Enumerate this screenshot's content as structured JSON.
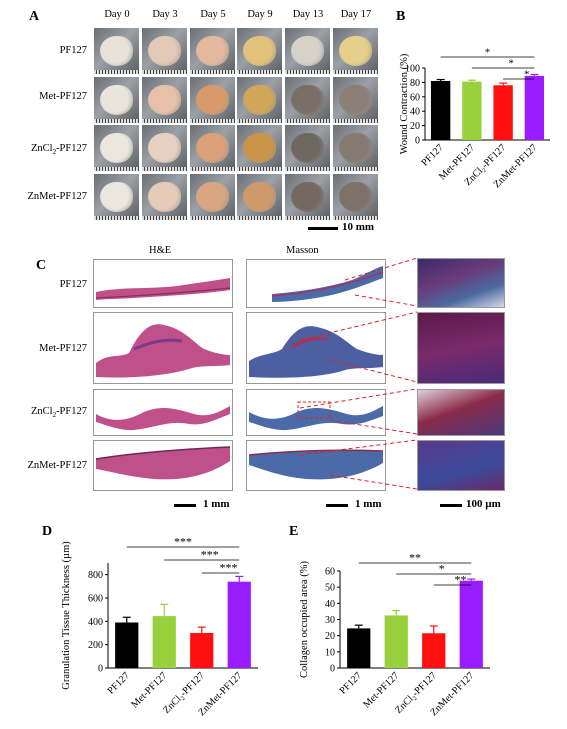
{
  "panel_letters": {
    "a": "A",
    "b": "B",
    "c": "C",
    "d": "D",
    "e": "E"
  },
  "panel_a": {
    "days": [
      "Day 0",
      "Day 3",
      "Day 5",
      "Day 9",
      "Day 13",
      "Day 17"
    ],
    "groups": [
      "PF127",
      "Met-PF127",
      "ZnCl2-PF127",
      "ZnMet-PF127"
    ],
    "scale_bar": "10 mm"
  },
  "panel_c": {
    "col_he": "H&E",
    "col_masson": "Masson",
    "groups": [
      "PF127",
      "Met-PF127",
      "ZnCl2-PF127",
      "ZnMet-PF127"
    ],
    "scale_he": "1 mm",
    "scale_masson": "1 mm",
    "scale_zoom": "100 µm"
  },
  "colors": {
    "pf127": "#000000",
    "met": "#99d13c",
    "zncl2": "#ff1010",
    "znmet": "#9a1dff"
  },
  "chart_data": [
    {
      "panel": "B",
      "type": "bar",
      "categories": [
        "PF127",
        "Met-PF127",
        "ZnCl2-PF127",
        "ZnMet-PF127"
      ],
      "values": [
        82,
        81,
        76,
        89
      ],
      "errors": [
        2,
        2,
        3,
        2
      ],
      "ylabel": "Wound Contraction (%)",
      "ylim": [
        0,
        100
      ],
      "yticks": [
        0,
        20,
        40,
        60,
        80,
        100
      ],
      "significance": [
        "*",
        "*",
        "*"
      ]
    },
    {
      "panel": "D",
      "type": "bar",
      "categories": [
        "PF127",
        "Met-PF127",
        "ZnCl2-PF127",
        "ZnMet-PF127"
      ],
      "values": [
        390,
        445,
        300,
        740
      ],
      "errors": [
        45,
        100,
        50,
        45
      ],
      "ylabel": "Granulation Tissue Thickness (µm)",
      "ylim": [
        0,
        900
      ],
      "yticks": [
        0,
        200,
        400,
        600,
        800
      ],
      "significance": [
        "***",
        "***",
        "***"
      ]
    },
    {
      "panel": "E",
      "type": "bar",
      "categories": [
        "PF127",
        "Met-PF127",
        "ZnCl2-PF127",
        "ZnMet-PF127"
      ],
      "values": [
        24.5,
        32.5,
        21.5,
        54
      ],
      "errors": [
        2,
        3,
        4.5,
        1
      ],
      "ylabel": "Collagen occupied area (%)",
      "ylim": [
        0,
        60
      ],
      "yticks": [
        0,
        10,
        20,
        30,
        40,
        50,
        60
      ],
      "significance": [
        "**",
        "*",
        "**"
      ]
    }
  ]
}
